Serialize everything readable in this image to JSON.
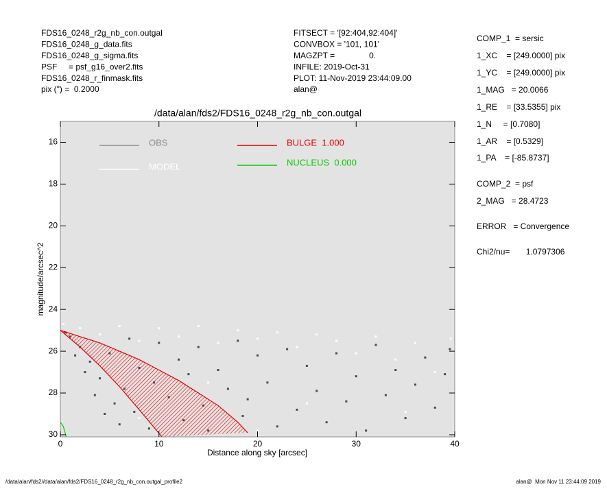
{
  "header": {
    "left": [
      "FDS16_0248_r2g_nb_con.outgal",
      "FDS16_0248_g_data.fits",
      "FDS16_0248_g_sigma.fits",
      "PSF     = psf_g16_over2.fits",
      "FDS16_0248_r_finmask.fits",
      "pix (\") =  0.2000"
    ],
    "middle": [
      "FITSECT = '[92:404,92:404]'",
      "CONVBOX = '101, 101'",
      "MAGZPT =               0.",
      "INFILE: 2019-Oct-31",
      "PLOT: 11-Nov-2019 23:44:09.00",
      "alan@"
    ],
    "right": [
      "COMP_1  = sersic",
      "1_XC    = [249.0000] pix",
      "1_YC    = [249.0000] pix",
      "1_MAG   = 20.0066",
      "1_RE    = [33.5355] pix",
      "1_N     = [0.7080]",
      "1_AR    = [0.5329]",
      "1_PA    = [-85.8737]",
      "COMP_2  = psf",
      "2_MAG   = 28.4723",
      "ERROR   = Convergence",
      "Chi2/nu=       1.0797306"
    ]
  },
  "footer": {
    "left": "/data/alan/fds2//data/alan/fds2/FDS16_0248_r2g_nb_con.outgal_profile2",
    "right": "alan@  Mon Nov 11 23:44:09 2019"
  },
  "chart_data": {
    "type": "scatter",
    "title": "/data/alan/fds2/FDS16_0248_r2g_nb_con.outgal",
    "x_label": "Distance along sky [arcsec]",
    "y_label": "magnitude/arcsec^2",
    "xlim": [
      0,
      40
    ],
    "xticks": [
      0,
      10,
      20,
      30,
      40
    ],
    "ylim": [
      30.1,
      15
    ],
    "yticks": [
      16,
      18,
      20,
      22,
      24,
      26,
      28,
      30
    ],
    "background": "#e3e3e3",
    "series": [
      {
        "name": "OBS",
        "type": "scatter",
        "color": "#4a4a4a",
        "x": [
          0.5,
          1,
          1.5,
          2,
          2.5,
          3,
          3.5,
          4,
          4.5,
          5,
          5.5,
          6,
          6.5,
          7,
          7.5,
          8,
          9,
          9.5,
          10,
          11,
          12,
          12.5,
          13,
          14,
          14.5,
          15,
          16,
          17,
          18,
          18.5,
          19,
          20,
          21,
          22,
          23,
          24,
          25,
          26,
          27,
          28,
          29,
          30,
          31,
          32,
          33,
          34,
          35,
          36,
          37,
          38,
          39,
          39.5
        ],
        "values": [
          25.1,
          25.3,
          26.2,
          25.8,
          27,
          26.5,
          28.1,
          27.3,
          29,
          26.1,
          28.5,
          29.5,
          27.8,
          25.4,
          28.9,
          26.8,
          29.7,
          27.5,
          25.6,
          28.2,
          26.4,
          29.3,
          27.1,
          25.8,
          28.6,
          29.8,
          26.9,
          27.8,
          25.5,
          29.1,
          28.3,
          26.2,
          27.5,
          29.6,
          25.9,
          28.8,
          26.7,
          27.9,
          29.4,
          26.1,
          28.4,
          27.2,
          29.8,
          25.7,
          28.1,
          26.9,
          29.2,
          27.6,
          26.3,
          28.7,
          27.1,
          25.9
        ]
      },
      {
        "name": "MODEL",
        "type": "scatter",
        "color": "#ffffff",
        "x": [
          0.3,
          2,
          4,
          6,
          8,
          10,
          12,
          14,
          16,
          18,
          20,
          22,
          24,
          26,
          28,
          30,
          32,
          34,
          36,
          38,
          39.6,
          15,
          25,
          35,
          8,
          20
        ],
        "values": [
          24.7,
          24.9,
          25.2,
          24.8,
          25.5,
          24.9,
          25.3,
          24.8,
          25.6,
          25.0,
          25.4,
          25.1,
          25.8,
          25.2,
          25.5,
          26.1,
          25.3,
          26.4,
          25.6,
          27.0,
          25.4,
          27.5,
          28.5,
          28.9,
          29.2,
          29.8
        ]
      },
      {
        "name": "BULGE  1.000",
        "type": "area",
        "color": "#e00000",
        "x": [
          0,
          2,
          4,
          6,
          8,
          10,
          12,
          14,
          16,
          18,
          19
        ],
        "values": [
          25,
          25.3,
          25.6,
          26.0,
          26.4,
          26.9,
          27.4,
          28.0,
          28.6,
          29.4,
          29.9
        ],
        "x_low": [
          0,
          2,
          4,
          6,
          8,
          10.3
        ],
        "values_low": [
          25,
          25.8,
          26.7,
          27.7,
          28.8,
          30.1
        ]
      },
      {
        "name": "NUCLEUS  0.000",
        "type": "line",
        "color": "#00cc00",
        "x": [
          0,
          0.3,
          0.6
        ],
        "values": [
          29.4,
          29.6,
          30.1
        ]
      }
    ]
  }
}
